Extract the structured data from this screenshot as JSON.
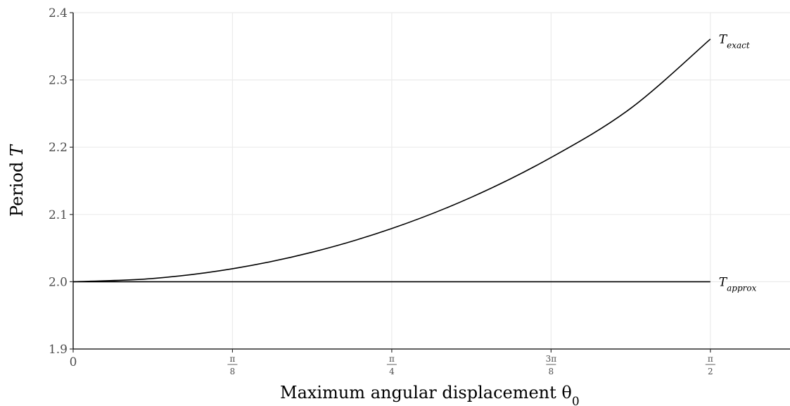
{
  "chart_data": {
    "type": "line",
    "xlabel": "Maximum angular displacement θ",
    "xlabel_subscript": "0",
    "ylabel": "Period",
    "ylabel_symbol": "T",
    "xlim": [
      0,
      1.7671
    ],
    "ylim": [
      1.9,
      2.4
    ],
    "grid": true,
    "x_ticks": [
      {
        "value": 0,
        "label": "0"
      },
      {
        "value": 0.3927,
        "num": "π",
        "den": "8"
      },
      {
        "value": 0.7854,
        "num": "π",
        "den": "4"
      },
      {
        "value": 1.1781,
        "num": "3π",
        "den": "8"
      },
      {
        "value": 1.5708,
        "num": "π",
        "den": "2"
      }
    ],
    "y_ticks": [
      {
        "value": 1.9,
        "label": "1.9"
      },
      {
        "value": 2.0,
        "label": "2.0"
      },
      {
        "value": 2.1,
        "label": "2.1"
      },
      {
        "value": 2.2,
        "label": "2.2"
      },
      {
        "value": 2.3,
        "label": "2.3"
      },
      {
        "value": 2.4,
        "label": "2.4"
      }
    ],
    "series": [
      {
        "label_base": "T",
        "label_sub": "exact",
        "color": "#000000",
        "x": [
          0,
          0.1963,
          0.3927,
          0.589,
          0.7854,
          0.9817,
          1.1781,
          1.3744,
          1.5708
        ],
        "y": [
          2.0,
          2.0048,
          2.0193,
          2.0439,
          2.0791,
          2.1256,
          2.1847,
          2.2578,
          2.3607
        ]
      },
      {
        "label_base": "T",
        "label_sub": "approx",
        "color": "#000000",
        "x": [
          0,
          1.5708
        ],
        "y": [
          2.0,
          2.0
        ]
      }
    ]
  }
}
